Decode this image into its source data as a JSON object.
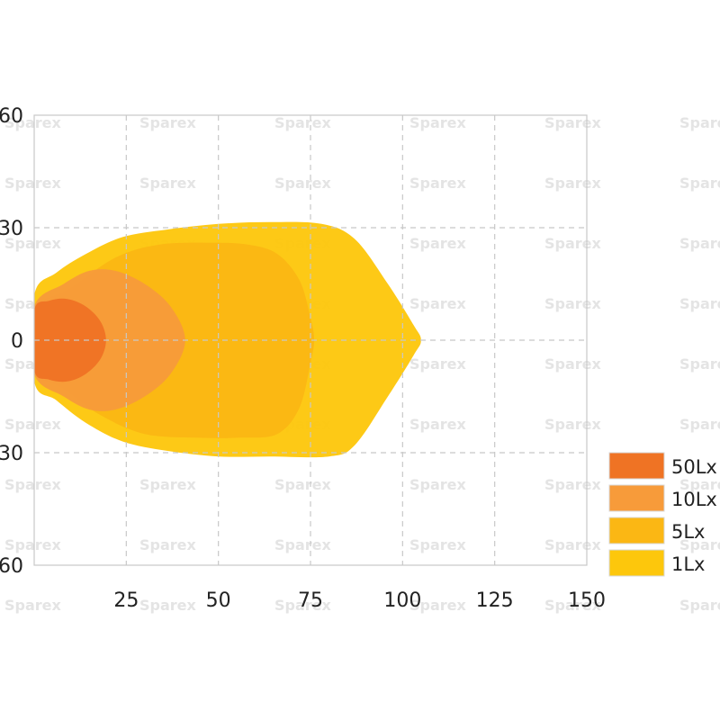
{
  "watermark": "Sparex",
  "chart_data": {
    "type": "area",
    "title": "",
    "xlabel": "",
    "ylabel": "",
    "xlim": [
      0,
      150
    ],
    "ylim": [
      -60,
      60
    ],
    "x_ticks": [
      "25",
      "50",
      "75",
      "100",
      "125",
      "150"
    ],
    "y_ticks": [
      "60",
      "30",
      "0",
      "30",
      "60"
    ],
    "grid": true,
    "legend_placement": "bottom-right",
    "series": [
      {
        "name": "1Lx",
        "color": "#fdc70c",
        "points": [
          [
            0,
            12
          ],
          [
            6,
            18
          ],
          [
            14,
            23
          ],
          [
            24,
            27.5
          ],
          [
            36,
            29.5
          ],
          [
            50,
            31
          ],
          [
            64,
            31.5
          ],
          [
            78,
            31
          ],
          [
            87,
            27
          ],
          [
            96,
            15
          ],
          [
            103,
            4
          ],
          [
            105,
            0
          ],
          [
            103,
            -4
          ],
          [
            96,
            -15
          ],
          [
            87,
            -28
          ],
          [
            80,
            -31
          ],
          [
            64,
            -31
          ],
          [
            50,
            -31
          ],
          [
            36,
            -29.5
          ],
          [
            24,
            -27
          ],
          [
            14,
            -22
          ],
          [
            6,
            -16
          ],
          [
            0,
            -11
          ]
        ]
      },
      {
        "name": "5Lx",
        "color": "#fbb714",
        "points": [
          [
            0,
            8
          ],
          [
            10,
            14
          ],
          [
            22,
            22
          ],
          [
            34,
            25.5
          ],
          [
            48,
            26
          ],
          [
            58,
            25.5
          ],
          [
            66,
            23
          ],
          [
            72,
            16
          ],
          [
            75,
            6
          ],
          [
            76,
            0
          ],
          [
            75,
            -6
          ],
          [
            72,
            -18
          ],
          [
            66,
            -25
          ],
          [
            56,
            -26
          ],
          [
            44,
            -26
          ],
          [
            30,
            -25
          ],
          [
            18,
            -20
          ],
          [
            8,
            -13
          ],
          [
            0,
            -8
          ]
        ]
      },
      {
        "name": "10Lx",
        "color": "#f79b3a",
        "points": [
          [
            0,
            9
          ],
          [
            8,
            15
          ],
          [
            15,
            18.5
          ],
          [
            22,
            18.5
          ],
          [
            30,
            15
          ],
          [
            37,
            9
          ],
          [
            41,
            0
          ],
          [
            37,
            -9
          ],
          [
            30,
            -15
          ],
          [
            22,
            -18.5
          ],
          [
            15,
            -18.5
          ],
          [
            8,
            -15
          ],
          [
            0,
            -9
          ]
        ]
      },
      {
        "name": "50Lx",
        "color": "#ef7324",
        "points": [
          [
            0,
            8
          ],
          [
            4,
            10.5
          ],
          [
            9,
            11
          ],
          [
            14,
            9
          ],
          [
            18,
            5
          ],
          [
            19.5,
            0
          ],
          [
            18,
            -5
          ],
          [
            14,
            -9
          ],
          [
            9,
            -11
          ],
          [
            4,
            -10.5
          ],
          [
            0,
            -8
          ]
        ]
      }
    ],
    "legend": [
      {
        "label": "50Lx",
        "color": "#ef7324"
      },
      {
        "label": "10Lx",
        "color": "#f79b3a"
      },
      {
        "label": "5Lx",
        "color": "#fbb714"
      },
      {
        "label": "1Lx",
        "color": "#fdc70c"
      }
    ]
  }
}
